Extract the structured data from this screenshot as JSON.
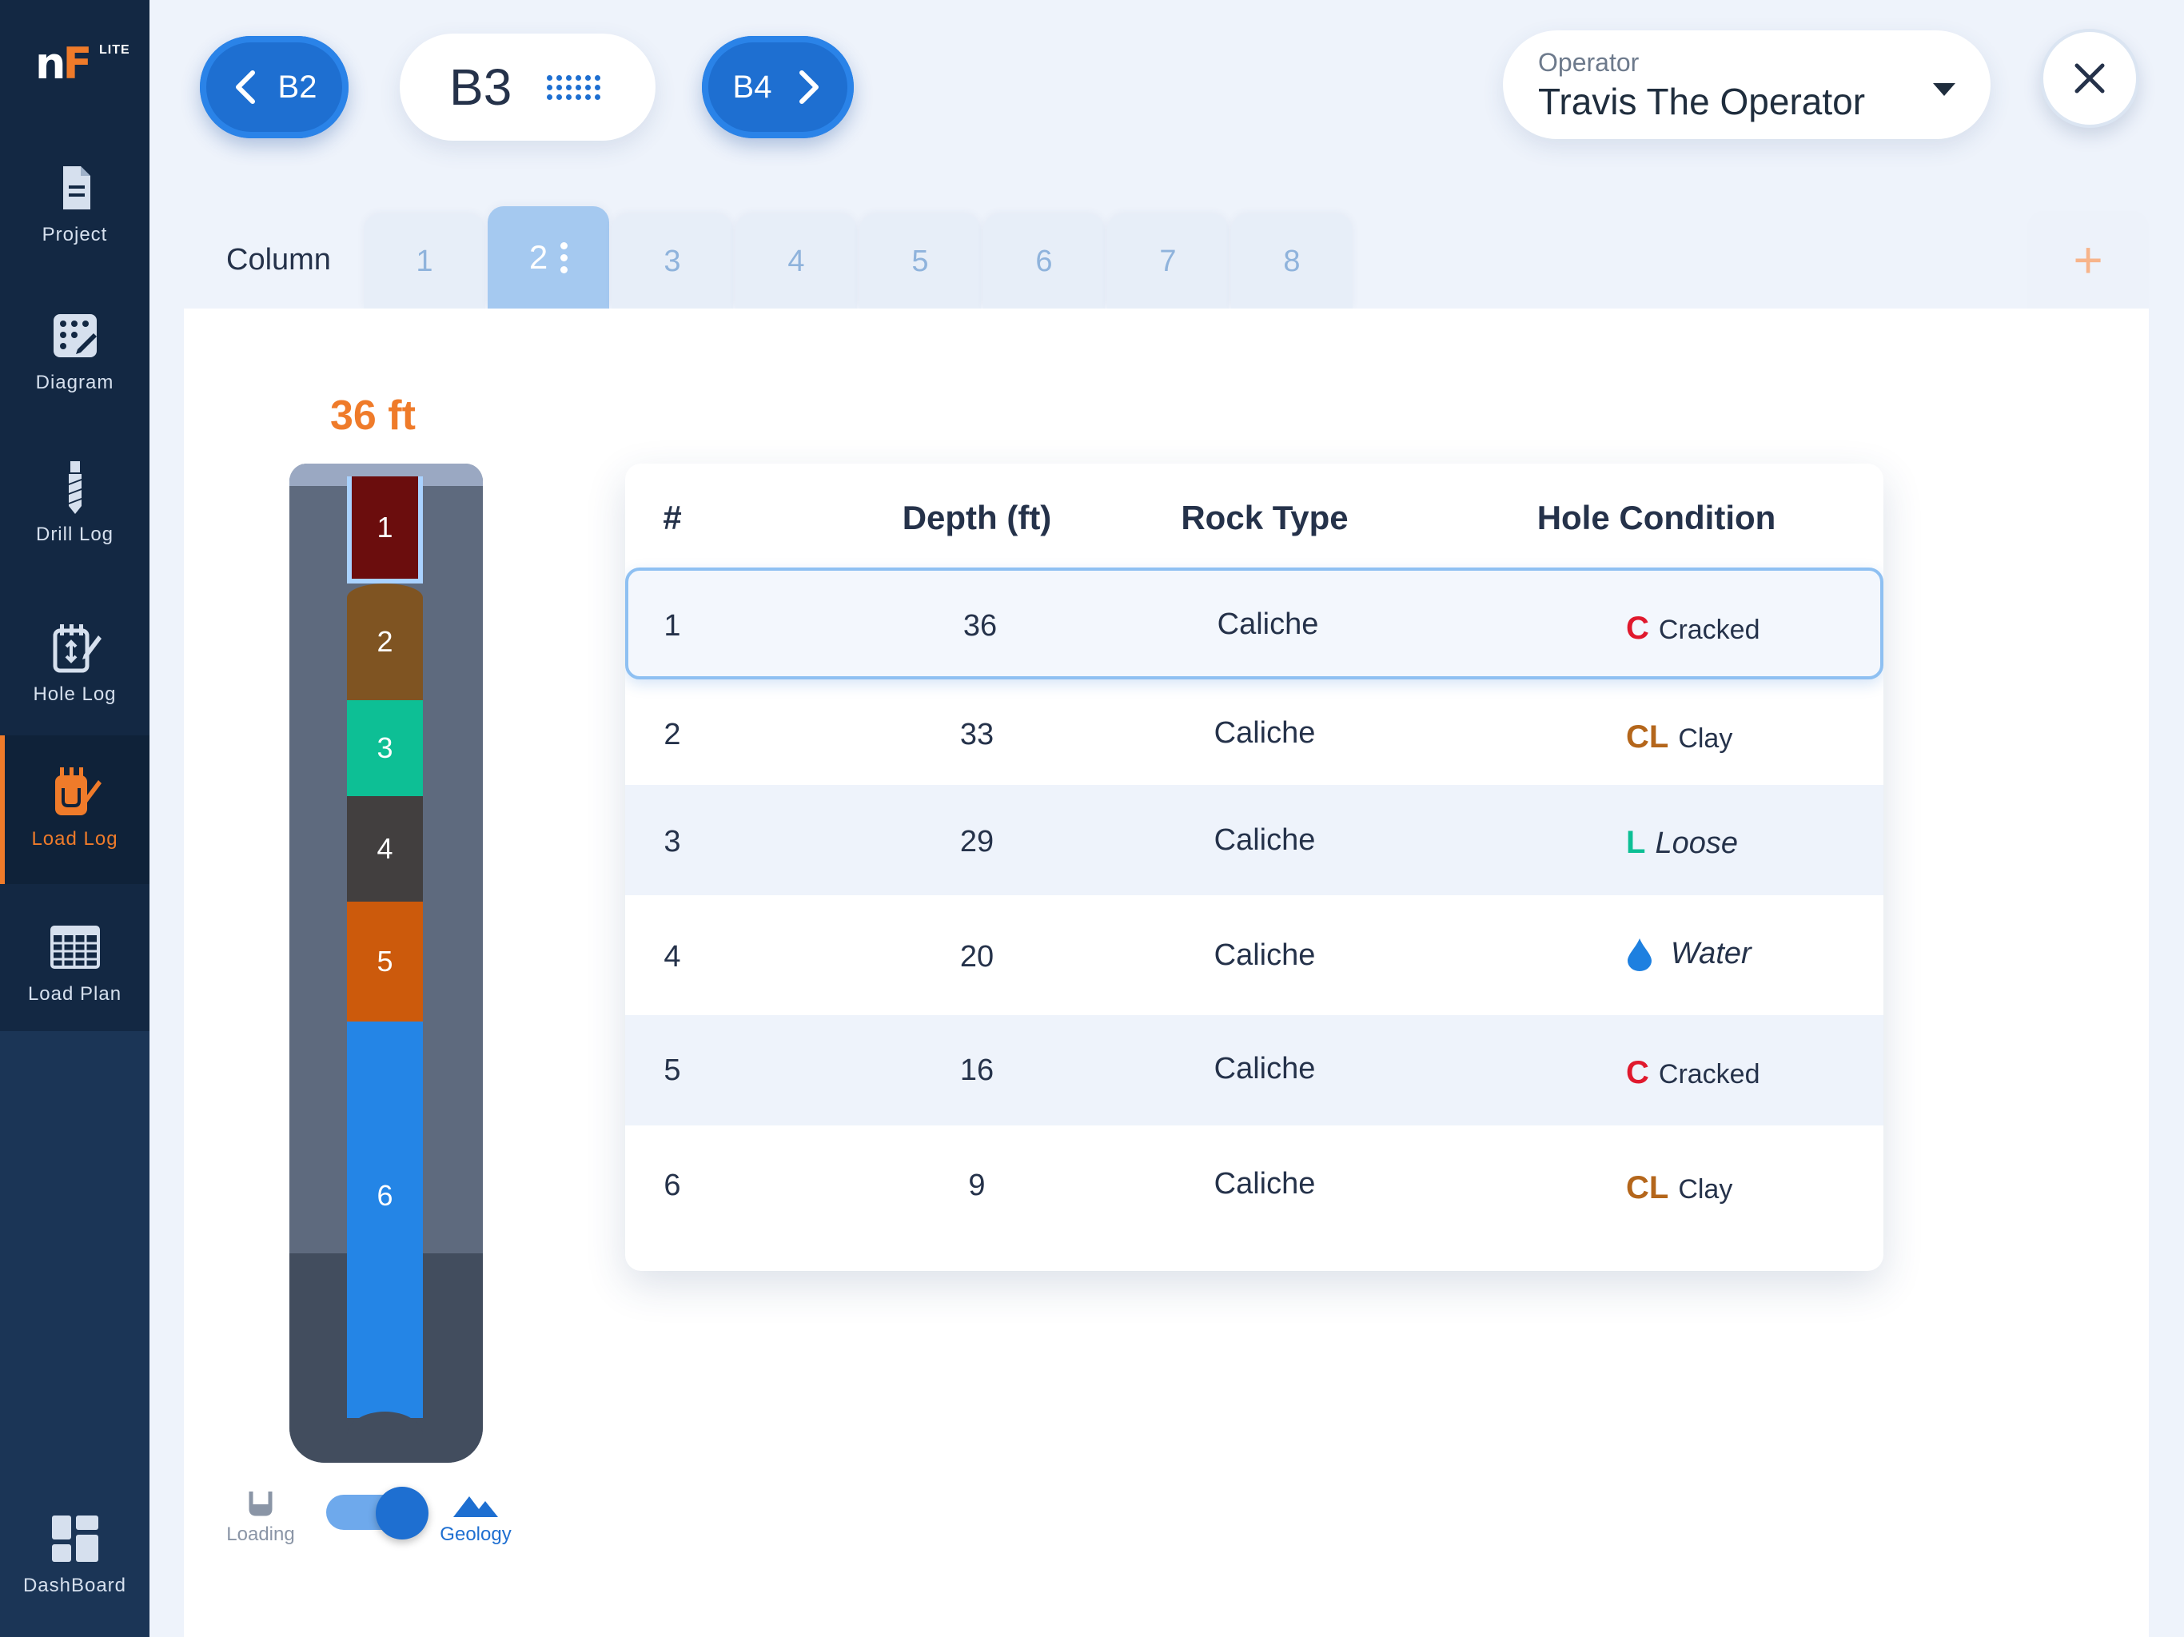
{
  "app": {
    "logo": "nF",
    "logo_badge": "LITE"
  },
  "sidebar": {
    "items": [
      {
        "label": "Project",
        "icon": "document-icon"
      },
      {
        "label": "Diagram",
        "icon": "diagram-grid-icon"
      },
      {
        "label": "Drill Log",
        "icon": "drill-bit-icon"
      },
      {
        "label": "Hole Log",
        "icon": "hole-log-icon"
      },
      {
        "label": "Load Log",
        "icon": "load-log-icon",
        "active": true
      },
      {
        "label": "Load Plan",
        "icon": "table-grid-icon"
      },
      {
        "label": "DashBoard",
        "icon": "dashboard-icon"
      }
    ]
  },
  "header": {
    "prev_hole": "B2",
    "current_hole": "B3",
    "next_hole": "B4",
    "operator_label": "Operator",
    "operator_value": "Travis The Operator",
    "close_icon": "close-icon"
  },
  "columns": {
    "label": "Column",
    "tabs": [
      "1",
      "2",
      "3",
      "4",
      "5",
      "6",
      "7",
      "8"
    ],
    "active": "2",
    "add": "+"
  },
  "column_graphic": {
    "depth_label": "36 ft",
    "segments": [
      {
        "label": "1",
        "color": "#6b0d0d"
      },
      {
        "label": "2",
        "color": "#7f5422"
      },
      {
        "label": "3",
        "color": "#0dbf95"
      },
      {
        "label": "4",
        "color": "#423f3f"
      },
      {
        "label": "5",
        "color": "#cc5a0c"
      },
      {
        "label": "6",
        "color": "#2485e6"
      }
    ]
  },
  "toggle": {
    "left_label": "Loading",
    "right_label": "Geology",
    "state": "Geology"
  },
  "table": {
    "headers": [
      "#",
      "Depth (ft)",
      "Rock Type",
      "Hole Condition"
    ],
    "rows": [
      {
        "num": "1",
        "depth": "36",
        "rock": "Caliche",
        "cond_code": "C",
        "cond_text": "Cracked",
        "cond_color": "#e0192d"
      },
      {
        "num": "2",
        "depth": "33",
        "rock": "Caliche",
        "cond_code": "CL",
        "cond_text": "Clay",
        "cond_color": "#b4661b"
      },
      {
        "num": "3",
        "depth": "29",
        "rock": "Caliche",
        "cond_code": "L",
        "cond_text": "Loose",
        "cond_color": "#0dbf95"
      },
      {
        "num": "4",
        "depth": "20",
        "rock": "Caliche",
        "cond_code": "",
        "cond_text": "Water",
        "cond_color": "#1e80e0"
      },
      {
        "num": "5",
        "depth": "16",
        "rock": "Caliche",
        "cond_code": "C",
        "cond_text": "Cracked",
        "cond_color": "#e0192d"
      },
      {
        "num": "6",
        "depth": "9",
        "rock": "Caliche",
        "cond_code": "CL",
        "cond_text": "Clay",
        "cond_color": "#b4661b"
      }
    ]
  }
}
